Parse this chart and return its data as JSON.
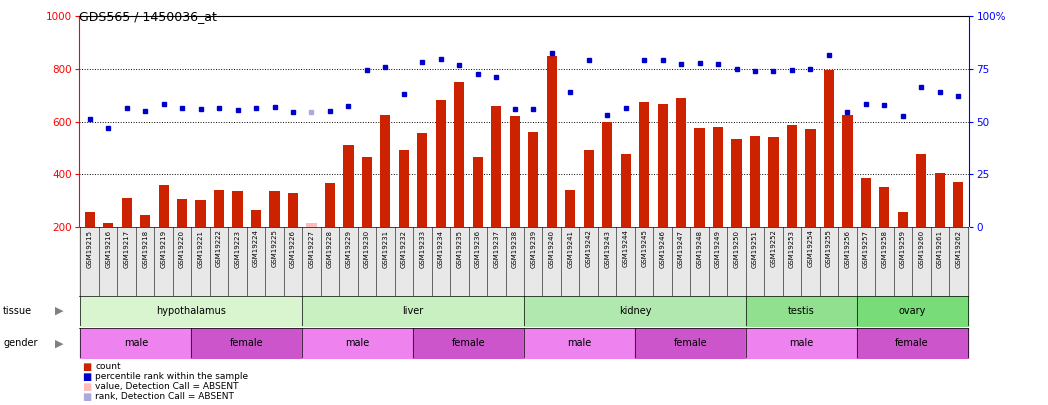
{
  "title": "GDS565 / 1450036_at",
  "samples": [
    "GSM19215",
    "GSM19216",
    "GSM19217",
    "GSM19218",
    "GSM19219",
    "GSM19220",
    "GSM19221",
    "GSM19222",
    "GSM19223",
    "GSM19224",
    "GSM19225",
    "GSM19226",
    "GSM19227",
    "GSM19228",
    "GSM19229",
    "GSM19230",
    "GSM19231",
    "GSM19232",
    "GSM19233",
    "GSM19234",
    "GSM19235",
    "GSM19236",
    "GSM19237",
    "GSM19238",
    "GSM19239",
    "GSM19240",
    "GSM19241",
    "GSM19242",
    "GSM19243",
    "GSM19244",
    "GSM19245",
    "GSM19246",
    "GSM19247",
    "GSM19248",
    "GSM19249",
    "GSM19250",
    "GSM19251",
    "GSM19252",
    "GSM19253",
    "GSM19254",
    "GSM19255",
    "GSM19256",
    "GSM19257",
    "GSM19258",
    "GSM19259",
    "GSM19260",
    "GSM19261",
    "GSM19262"
  ],
  "bar_values": [
    255,
    215,
    310,
    245,
    360,
    305,
    300,
    340,
    335,
    265,
    335,
    330,
    215,
    365,
    510,
    465,
    625,
    490,
    555,
    680,
    750,
    465,
    660,
    620,
    560,
    850,
    340,
    490,
    600,
    475,
    675,
    665,
    690,
    575,
    580,
    535,
    545,
    540,
    585,
    570,
    795,
    625,
    385,
    350,
    255,
    475,
    405,
    370
  ],
  "bar_absent": [
    false,
    false,
    false,
    false,
    false,
    false,
    false,
    false,
    false,
    false,
    false,
    false,
    true,
    false,
    false,
    false,
    false,
    false,
    false,
    false,
    false,
    false,
    false,
    false,
    false,
    false,
    false,
    false,
    false,
    false,
    false,
    false,
    false,
    false,
    false,
    false,
    false,
    false,
    false,
    false,
    false,
    false,
    false,
    false,
    false,
    false,
    false,
    false
  ],
  "rank_values": [
    610,
    575,
    650,
    640,
    665,
    650,
    648,
    650,
    645,
    650,
    655,
    637,
    635,
    640,
    660,
    795,
    808,
    705,
    825,
    838,
    815,
    780,
    770,
    648,
    648,
    860,
    712,
    835,
    625,
    652,
    835,
    832,
    820,
    822,
    820,
    800,
    790,
    792,
    797,
    800,
    852,
    637,
    668,
    662,
    620,
    730,
    712,
    695
  ],
  "rank_absent": [
    false,
    false,
    false,
    false,
    false,
    false,
    false,
    false,
    false,
    false,
    false,
    false,
    true,
    false,
    false,
    false,
    false,
    false,
    false,
    false,
    false,
    false,
    false,
    false,
    false,
    false,
    false,
    false,
    false,
    false,
    false,
    false,
    false,
    false,
    false,
    false,
    false,
    false,
    false,
    false,
    false,
    false,
    false,
    false,
    false,
    false,
    false,
    false
  ],
  "tissues": [
    {
      "label": "hypothalamus",
      "start": 0,
      "end": 12,
      "color": "#d8f5d0"
    },
    {
      "label": "liver",
      "start": 12,
      "end": 24,
      "color": "#c8f0c0"
    },
    {
      "label": "kidney",
      "start": 24,
      "end": 36,
      "color": "#b0e8b0"
    },
    {
      "label": "testis",
      "start": 36,
      "end": 42,
      "color": "#90e090"
    },
    {
      "label": "ovary",
      "start": 42,
      "end": 48,
      "color": "#78dc78"
    }
  ],
  "genders": [
    {
      "label": "male",
      "start": 0,
      "end": 6
    },
    {
      "label": "female",
      "start": 6,
      "end": 12
    },
    {
      "label": "male",
      "start": 12,
      "end": 18
    },
    {
      "label": "female",
      "start": 18,
      "end": 24
    },
    {
      "label": "male",
      "start": 24,
      "end": 30
    },
    {
      "label": "female",
      "start": 30,
      "end": 36
    },
    {
      "label": "male",
      "start": 36,
      "end": 42
    },
    {
      "label": "female",
      "start": 42,
      "end": 48
    }
  ],
  "male_color": "#ee82ee",
  "female_color": "#cc55cc",
  "bar_color": "#cc2200",
  "bar_absent_color": "#ffbbbb",
  "rank_color": "#0000cc",
  "rank_absent_color": "#aaaadd",
  "ylim": [
    200,
    1000
  ],
  "yticks_left": [
    200,
    400,
    600,
    800,
    1000
  ],
  "yticks_right": [
    0,
    25,
    50,
    75,
    100
  ],
  "hlines": [
    400,
    600,
    800
  ],
  "bar_width": 0.55
}
